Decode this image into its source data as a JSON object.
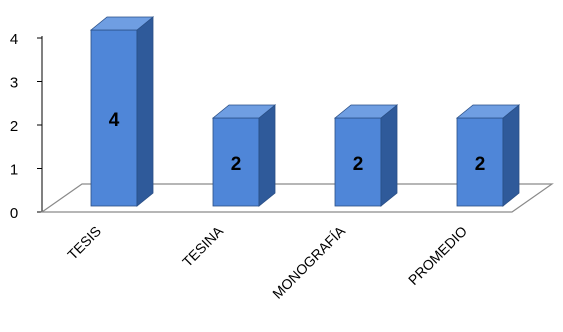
{
  "chart_data": {
    "type": "bar",
    "title": "",
    "xlabel": "",
    "ylabel": "",
    "categories": [
      "TESIS",
      "TESINA",
      "MONOGRAFÍA",
      "PROMEDIO"
    ],
    "values": [
      4,
      2,
      2,
      2
    ],
    "data_labels": [
      "4",
      "2",
      "2",
      "2"
    ],
    "ylim": [
      0,
      4
    ],
    "yticks": [
      "0",
      "1",
      "2",
      "3",
      "4"
    ],
    "grid": false,
    "legend": "none",
    "style": "3d-column",
    "colors": {
      "bar_front": "#4f86d8",
      "bar_side": "#2f5a9a",
      "bar_top": "#6f9ee2",
      "bar_edge": "#2a4f86",
      "floor": "#8a8a8a"
    }
  }
}
